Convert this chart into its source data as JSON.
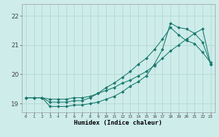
{
  "title": "",
  "xlabel": "Humidex (Indice chaleur)",
  "bg_color": "#cdecea",
  "grid_color": "#aed4d0",
  "line_color": "#1a7a6e",
  "xlim": [
    -0.5,
    23.5
  ],
  "ylim": [
    18.7,
    22.4
  ],
  "yticks": [
    19,
    20,
    21,
    22
  ],
  "xticks": [
    0,
    1,
    2,
    3,
    4,
    5,
    6,
    7,
    8,
    9,
    10,
    11,
    12,
    13,
    14,
    15,
    16,
    17,
    18,
    19,
    20,
    21,
    22,
    23
  ],
  "line1_x": [
    0,
    1,
    2,
    3,
    4,
    5,
    6,
    7,
    8,
    9,
    10,
    11,
    12,
    13,
    14,
    15,
    16,
    17,
    18,
    19,
    20,
    21,
    22,
    23
  ],
  "line1_y": [
    19.2,
    19.2,
    19.2,
    18.9,
    18.9,
    18.9,
    18.95,
    18.95,
    19.0,
    19.05,
    19.15,
    19.25,
    19.4,
    19.6,
    19.75,
    19.95,
    20.35,
    20.85,
    21.75,
    21.6,
    21.55,
    21.4,
    21.1,
    20.35
  ],
  "line2_x": [
    0,
    1,
    2,
    3,
    4,
    5,
    6,
    7,
    8,
    9,
    10,
    11,
    12,
    13,
    14,
    15,
    16,
    17,
    18,
    19,
    20,
    21,
    22,
    23
  ],
  "line2_y": [
    19.2,
    19.2,
    19.2,
    19.05,
    19.05,
    19.05,
    19.1,
    19.1,
    19.2,
    19.35,
    19.55,
    19.7,
    19.9,
    20.1,
    20.35,
    20.55,
    20.85,
    21.2,
    21.6,
    21.35,
    21.15,
    21.05,
    20.75,
    20.4
  ],
  "line3_x": [
    0,
    1,
    2,
    3,
    4,
    5,
    6,
    7,
    8,
    9,
    10,
    11,
    12,
    13,
    14,
    15,
    16,
    17,
    18,
    19,
    20,
    21,
    22,
    23
  ],
  "line3_y": [
    19.2,
    19.2,
    19.2,
    19.15,
    19.15,
    19.15,
    19.2,
    19.2,
    19.25,
    19.35,
    19.45,
    19.55,
    19.7,
    19.8,
    19.95,
    20.1,
    20.3,
    20.55,
    20.8,
    21.0,
    21.2,
    21.4,
    21.55,
    20.35
  ]
}
